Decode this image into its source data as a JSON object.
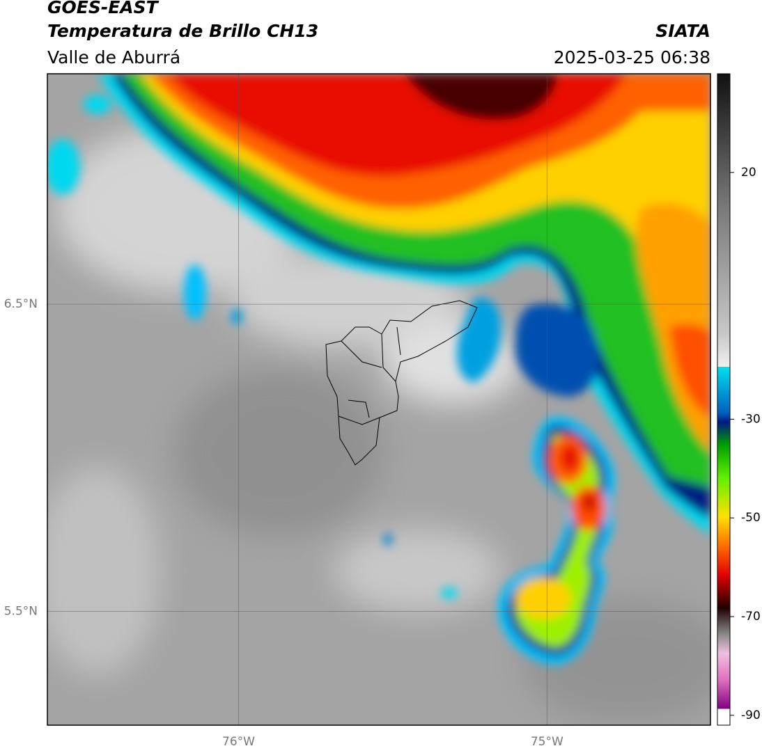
{
  "header": {
    "satellite": "GOES-EAST",
    "product": "Temperatura de Brillo CH13",
    "region": "Valle de Aburrá",
    "agency": "SIATA",
    "datetime": "2025-03-25 06:38"
  },
  "map": {
    "xlim": [
      -76.62,
      -74.47
    ],
    "ylim": [
      5.13,
      7.25
    ],
    "xticks": [
      {
        "value": -76,
        "label": "76°W"
      },
      {
        "value": -75,
        "label": "75°W"
      }
    ],
    "yticks": [
      {
        "value": 5.5,
        "label": "5.5°N"
      },
      {
        "value": 6.5,
        "label": "6.5°N"
      }
    ]
  },
  "colorbar": {
    "lim": [
      -92,
      40
    ],
    "ticks": [
      20,
      -30,
      -50,
      -70,
      -90
    ]
  }
}
